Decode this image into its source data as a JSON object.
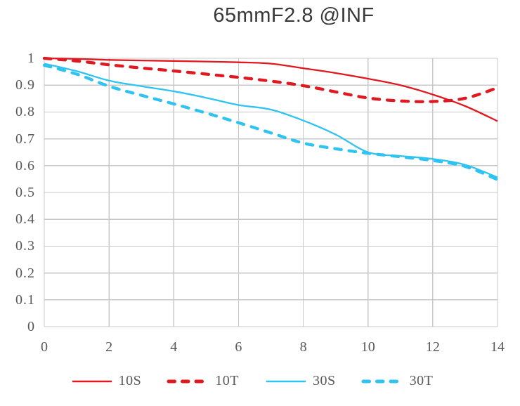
{
  "chart": {
    "title": "65mmF2.8 @INF",
    "colors": {
      "red": "#e0181f",
      "cyan": "#2ec3f1",
      "grid": "#c8c8c8",
      "tick_text": "#595959",
      "title_text": "#383838",
      "background": "#ffffff"
    }
  },
  "chart_data": {
    "type": "line",
    "title": "65mmF2.8 @INF",
    "xlabel": "",
    "ylabel": "",
    "xlim": [
      0,
      14
    ],
    "ylim": [
      0,
      1
    ],
    "grid": true,
    "legend_position": "bottom",
    "x_ticks": [
      0,
      2,
      4,
      6,
      8,
      10,
      12,
      14
    ],
    "x_tick_labels": [
      "0",
      "2",
      "4",
      "6",
      "8",
      "10",
      "12",
      "14"
    ],
    "y_ticks": [
      0,
      0.1,
      0.2,
      0.3,
      0.4,
      0.5,
      0.6,
      0.7,
      0.8,
      0.9,
      1
    ],
    "y_tick_labels": [
      "0",
      "0.1",
      "0.2",
      "0.3",
      "0.4",
      "0.5",
      "0.6",
      "0.7",
      "0.8",
      "0.9",
      "1"
    ],
    "x": [
      0,
      1,
      2,
      3,
      4,
      5,
      6,
      7,
      8,
      9,
      10,
      11,
      12,
      13,
      14
    ],
    "series": [
      {
        "name": "10S",
        "color": "#e0181f",
        "style": "solid",
        "values": [
          1.0,
          0.998,
          0.994,
          0.992,
          0.99,
          0.988,
          0.985,
          0.98,
          0.963,
          0.945,
          0.924,
          0.9,
          0.865,
          0.822,
          0.766
        ]
      },
      {
        "name": "10T",
        "color": "#e0181f",
        "style": "dashed",
        "values": [
          1.0,
          0.99,
          0.976,
          0.964,
          0.953,
          0.941,
          0.929,
          0.915,
          0.898,
          0.875,
          0.852,
          0.841,
          0.839,
          0.851,
          0.89
        ]
      },
      {
        "name": "30S",
        "color": "#2ec3f1",
        "style": "solid",
        "values": [
          0.98,
          0.952,
          0.917,
          0.896,
          0.877,
          0.853,
          0.826,
          0.809,
          0.768,
          0.716,
          0.65,
          0.636,
          0.625,
          0.603,
          0.556
        ]
      },
      {
        "name": "30T",
        "color": "#2ec3f1",
        "style": "dashed",
        "values": [
          0.974,
          0.941,
          0.896,
          0.862,
          0.83,
          0.796,
          0.76,
          0.722,
          0.684,
          0.663,
          0.646,
          0.633,
          0.619,
          0.597,
          0.548
        ]
      }
    ]
  }
}
